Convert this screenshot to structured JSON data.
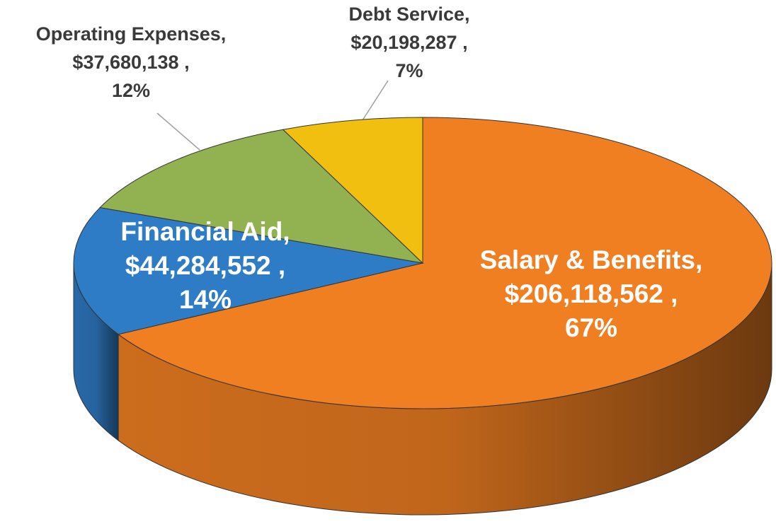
{
  "chart_data": {
    "type": "pie3d",
    "categories": [
      "Salary & Benefits,",
      "Financial Aid,",
      "Operating Expenses,",
      "Debt Service,"
    ],
    "values": [
      206118562,
      44284552,
      37680138,
      20198287
    ],
    "value_labels": [
      "$206,118,562 ,",
      "$44,284,552 ,",
      "$37,680,138 ,",
      "$20,198,287 ,"
    ],
    "percentages": [
      67,
      14,
      12,
      7
    ],
    "percentage_labels": [
      "67%",
      "14%",
      "12%",
      "7%"
    ],
    "colors": [
      "#f07f22",
      "#2f7cc6",
      "#92b150",
      "#f1bf10"
    ]
  }
}
